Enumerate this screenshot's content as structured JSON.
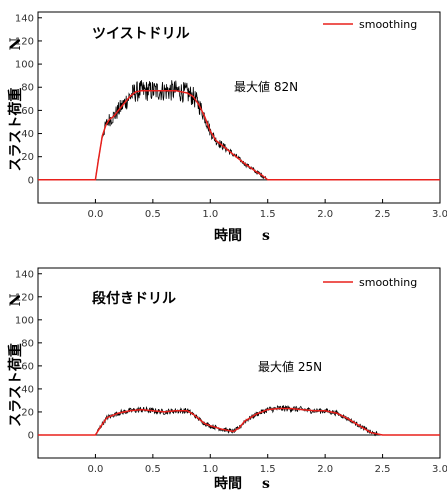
{
  "chart_data": [
    {
      "type": "line",
      "title": "ツイストドリル",
      "xlabel": "時間",
      "xunit": "s",
      "ylabel": "スラスト荷重",
      "yunit": "N",
      "xlim": [
        -0.5,
        3.0
      ],
      "ylim": [
        -20,
        145
      ],
      "x_ticks": [
        "0.0",
        "0.5",
        "1.0",
        "1.5",
        "2.0",
        "2.5",
        "3.0"
      ],
      "y_ticks": [
        "0",
        "20",
        "40",
        "60",
        "80",
        "100",
        "120",
        "140"
      ],
      "annotation": "最大値 82N",
      "legend": "smoothing",
      "legend_position": "top-right",
      "series": [
        {
          "name": "smoothing",
          "color": "#e8201c",
          "x": [
            -0.5,
            0.0,
            0.03,
            0.06,
            0.09,
            0.12,
            0.16,
            0.2,
            0.25,
            0.3,
            0.35,
            0.4,
            0.5,
            0.6,
            0.7,
            0.8,
            0.85,
            0.9,
            0.95,
            1.0,
            1.05,
            1.1,
            1.2,
            1.3,
            1.4,
            1.45,
            1.5,
            1.6,
            3.0
          ],
          "y": [
            0,
            0,
            20,
            38,
            47,
            52,
            55,
            60,
            66,
            72,
            76,
            77,
            77,
            77,
            77,
            75,
            72,
            65,
            55,
            42,
            34,
            30,
            22,
            14,
            7,
            4,
            0,
            0,
            0
          ]
        }
      ]
    },
    {
      "type": "line",
      "title": "段付きドリル",
      "xlabel": "時間",
      "xunit": "s",
      "ylabel": "スラスト荷重",
      "yunit": "N",
      "xlim": [
        -0.5,
        3.0
      ],
      "ylim": [
        -20,
        145
      ],
      "x_ticks": [
        "0.0",
        "0.5",
        "1.0",
        "1.5",
        "2.0",
        "2.5",
        "3.0"
      ],
      "y_ticks": [
        "0",
        "20",
        "40",
        "60",
        "80",
        "100",
        "120",
        "140"
      ],
      "annotation": "最大値 25N",
      "legend": "smoothing",
      "legend_position": "top-right",
      "series": [
        {
          "name": "smoothing",
          "color": "#e8201c",
          "x": [
            -0.5,
            0.0,
            0.05,
            0.1,
            0.2,
            0.3,
            0.4,
            0.5,
            0.6,
            0.7,
            0.8,
            0.85,
            0.9,
            0.95,
            1.0,
            1.1,
            1.2,
            1.25,
            1.3,
            1.4,
            1.5,
            1.6,
            1.7,
            1.8,
            1.9,
            2.0,
            2.1,
            2.2,
            2.3,
            2.4,
            2.5,
            3.0
          ],
          "y": [
            0,
            0,
            8,
            15,
            19,
            21,
            22,
            21,
            20,
            21,
            21,
            18,
            14,
            10,
            8,
            5,
            3,
            6,
            12,
            18,
            22,
            23,
            23,
            22,
            21,
            21,
            19,
            14,
            8,
            2,
            0,
            0
          ]
        }
      ]
    }
  ]
}
